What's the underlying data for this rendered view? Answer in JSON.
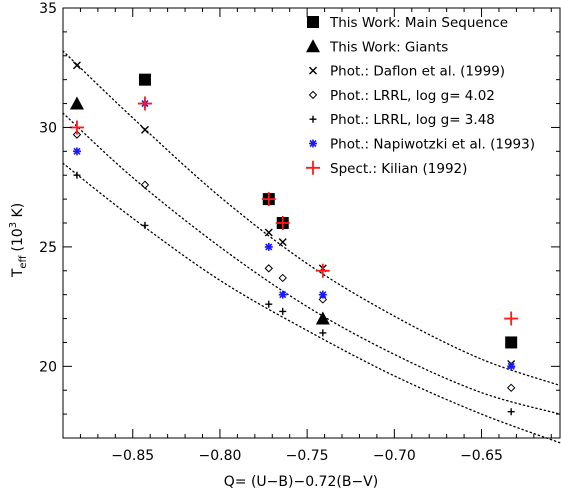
{
  "chart_data": {
    "type": "scatter",
    "xlabel": "Q= (U−B)−0.72(B−V)",
    "ylabel_main": "T",
    "ylabel_sub": "eff",
    "ylabel_unit_prefix": "(10",
    "ylabel_unit_exp": "3",
    "ylabel_unit_suffix": " K)",
    "xlim": [
      -0.89,
      -0.605
    ],
    "ylim": [
      17,
      35
    ],
    "x_ticks": [
      -0.85,
      -0.8,
      -0.75,
      -0.7,
      -0.65
    ],
    "x_tick_labels": [
      "−0.85",
      "−0.80",
      "−0.75",
      "−0.70",
      "−0.65"
    ],
    "y_ticks": [
      20,
      25,
      30,
      35
    ],
    "y_tick_labels": [
      "20",
      "25",
      "30",
      "35"
    ],
    "legend_position": "top-right",
    "series": [
      {
        "name": "This Work: Main Sequence",
        "marker": "square",
        "color": "#000000",
        "points": [
          [
            -0.843,
            32.0
          ],
          [
            -0.772,
            27.0
          ],
          [
            -0.764,
            26.0
          ],
          [
            -0.633,
            21.0
          ]
        ]
      },
      {
        "name": "This Work: Giants",
        "marker": "triangle",
        "color": "#000000",
        "points": [
          [
            -0.882,
            31.0
          ],
          [
            -0.741,
            22.0
          ]
        ]
      },
      {
        "name": "Phot.: Daflon et al. (1999)",
        "marker": "x",
        "color": "#000000",
        "points": [
          [
            -0.882,
            32.6
          ],
          [
            -0.843,
            29.9
          ],
          [
            -0.772,
            25.6
          ],
          [
            -0.764,
            25.2
          ],
          [
            -0.741,
            24.1
          ],
          [
            -0.633,
            20.1
          ]
        ]
      },
      {
        "name": "Phot.: LRRL, log g= 4.02",
        "marker": "diamond",
        "color": "#000000",
        "points": [
          [
            -0.882,
            29.7
          ],
          [
            -0.843,
            27.6
          ],
          [
            -0.772,
            24.1
          ],
          [
            -0.764,
            23.7
          ],
          [
            -0.741,
            22.8
          ],
          [
            -0.633,
            19.1
          ]
        ]
      },
      {
        "name": "Phot.: LRRL, log g= 3.48",
        "marker": "plus",
        "color": "#000000",
        "points": [
          [
            -0.882,
            28.0
          ],
          [
            -0.843,
            25.9
          ],
          [
            -0.772,
            22.6
          ],
          [
            -0.764,
            22.3
          ],
          [
            -0.741,
            21.4
          ],
          [
            -0.633,
            18.1
          ]
        ]
      },
      {
        "name": "Phot.: Napiwotzki et al. (1993)",
        "marker": "asterisk",
        "color": "#1a1aff",
        "points": [
          [
            -0.882,
            29.0
          ],
          [
            -0.843,
            31.0
          ],
          [
            -0.772,
            25.0
          ],
          [
            -0.764,
            23.0
          ],
          [
            -0.741,
            23.0
          ],
          [
            -0.633,
            20.0
          ]
        ]
      },
      {
        "name": "Spect.: Kilian (1992)",
        "marker": "bigplus",
        "color": "#ff1a1a",
        "points": [
          [
            -0.882,
            30.0
          ],
          [
            -0.843,
            31.0
          ],
          [
            -0.772,
            27.0
          ],
          [
            -0.764,
            26.0
          ],
          [
            -0.741,
            24.0
          ],
          [
            -0.633,
            22.0
          ]
        ]
      }
    ],
    "fit_curves": [
      {
        "style": "dotted",
        "color": "#000000",
        "points": [
          [
            -0.89,
            33.2
          ],
          [
            -0.85,
            30.4
          ],
          [
            -0.8,
            27.1
          ],
          [
            -0.75,
            24.3
          ],
          [
            -0.7,
            22.1
          ],
          [
            -0.65,
            20.3
          ],
          [
            -0.605,
            19.2
          ]
        ]
      },
      {
        "style": "dotted",
        "color": "#000000",
        "points": [
          [
            -0.89,
            30.6
          ],
          [
            -0.85,
            27.9
          ],
          [
            -0.8,
            25.0
          ],
          [
            -0.75,
            22.5
          ],
          [
            -0.7,
            20.5
          ],
          [
            -0.65,
            18.9
          ],
          [
            -0.605,
            18.0
          ]
        ]
      },
      {
        "style": "dotted",
        "color": "#000000",
        "points": [
          [
            -0.89,
            28.5
          ],
          [
            -0.85,
            26.2
          ],
          [
            -0.8,
            23.6
          ],
          [
            -0.75,
            21.5
          ],
          [
            -0.7,
            19.6
          ],
          [
            -0.65,
            18.0
          ],
          [
            -0.605,
            16.8
          ]
        ]
      }
    ]
  }
}
